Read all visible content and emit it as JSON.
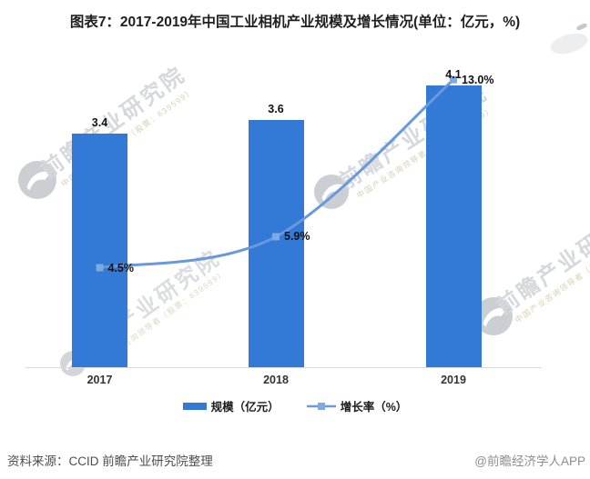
{
  "title": "图表7：2017-2019年中国工业相机产业规模及增长情况(单位：亿元，%)",
  "chart_data": {
    "type": "combo",
    "categories": [
      "2017",
      "2018",
      "2019"
    ],
    "series": [
      {
        "name": "规模（亿元）",
        "type": "bar",
        "values": [
          3.4,
          3.6,
          4.1
        ],
        "labels": [
          "3.4",
          "3.6",
          "4.1"
        ],
        "color": "#3379D6"
      },
      {
        "name": "增长率（%）",
        "type": "line",
        "values": [
          4.5,
          5.9,
          13.0
        ],
        "labels": [
          "4.5%",
          "5.9%",
          "13.0%"
        ],
        "color": "#6799DC",
        "marker_color": "#7FA9E3",
        "marker_shape": "square",
        "smooth": true
      }
    ],
    "value_labels": true,
    "grid": false,
    "y_axes_visible": false,
    "legend_position": "bottom"
  },
  "footer": {
    "source": "资料来源：CCID 前瞻产业研究院整理",
    "credit": "@前瞻经济学人APP"
  },
  "watermark": {
    "text": "前瞻产业研究院",
    "subtext": "中国产业咨询领导者（股票：839599）"
  },
  "colors": {
    "bar": "#3379D6",
    "line": "#6799DC",
    "marker": "#7FA9E3",
    "axis_line": "#D9D9D9",
    "title_text": "#1F1F1F",
    "label_text": "#111111",
    "source_text": "#4D4D4D",
    "credit_text": "#8E8E8E",
    "watermark_text": "#D5D8DC",
    "watermark_sub": "#D9CFB6",
    "watermark_logo": "#CBCFD4"
  }
}
